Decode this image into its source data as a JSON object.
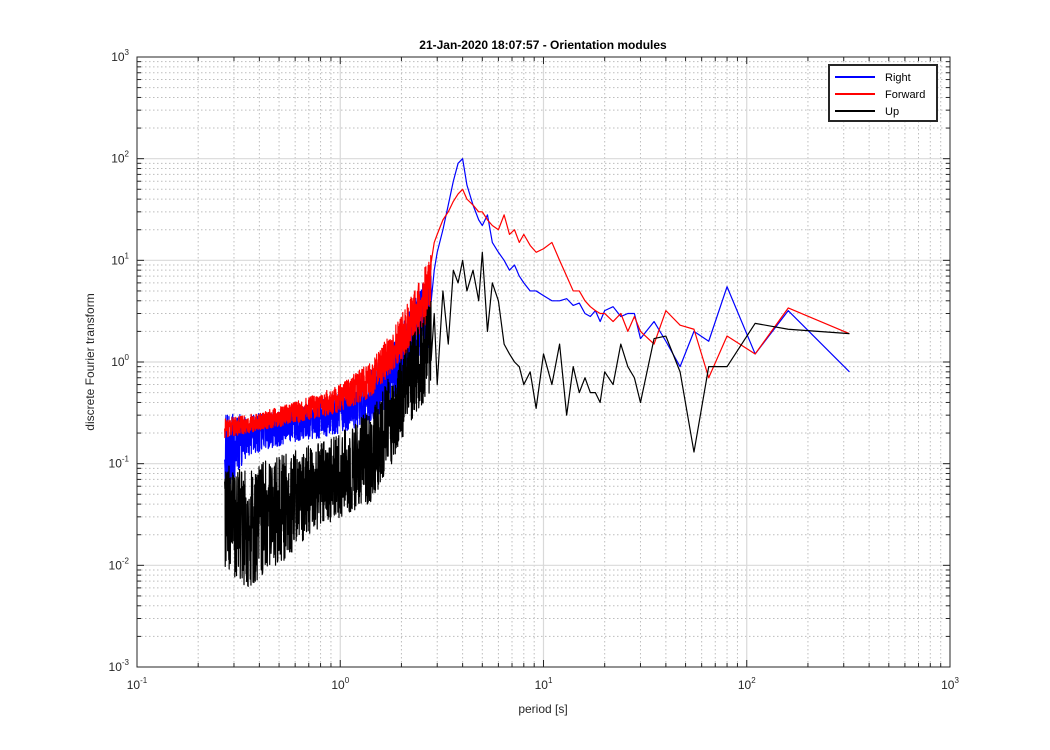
{
  "chart_data": {
    "type": "line",
    "title": "21-Jan-2020 18:07:57 - Orientation modules",
    "xlabel": "period [s]",
    "ylabel": "discrete Fourier transform",
    "xscale": "log",
    "yscale": "log",
    "xlim": [
      0.1,
      1000
    ],
    "ylim": [
      0.001,
      1000
    ],
    "x_ticks": [
      {
        "base": "10",
        "exp": "-1"
      },
      {
        "base": "10",
        "exp": "0"
      },
      {
        "base": "10",
        "exp": "1"
      },
      {
        "base": "10",
        "exp": "2"
      },
      {
        "base": "10",
        "exp": "3"
      }
    ],
    "y_ticks": [
      {
        "base": "10",
        "exp": "-3"
      },
      {
        "base": "10",
        "exp": "-2"
      },
      {
        "base": "10",
        "exp": "-1"
      },
      {
        "base": "10",
        "exp": "0"
      },
      {
        "base": "10",
        "exp": "1"
      },
      {
        "base": "10",
        "exp": "2"
      },
      {
        "base": "10",
        "exp": "3"
      }
    ],
    "grid": true,
    "minor_grid": true,
    "legend_position": "top-right",
    "series": [
      {
        "name": "Right",
        "color": "#0000ff",
        "envelope": [
          {
            "x": 0.27,
            "low": 0.05,
            "high": 0.32
          },
          {
            "x": 0.35,
            "low": 0.12,
            "high": 0.3
          },
          {
            "x": 0.5,
            "low": 0.15,
            "high": 0.33
          },
          {
            "x": 0.7,
            "low": 0.17,
            "high": 0.4
          },
          {
            "x": 1.0,
            "low": 0.2,
            "high": 0.5
          },
          {
            "x": 1.4,
            "low": 0.25,
            "high": 0.8
          },
          {
            "x": 1.8,
            "low": 0.4,
            "high": 1.5
          },
          {
            "x": 2.3,
            "low": 0.8,
            "high": 4.0
          },
          {
            "x": 2.8,
            "low": 1.5,
            "high": 10.0
          }
        ],
        "x": [
          2.9,
          3.0,
          3.2,
          3.4,
          3.6,
          3.8,
          4.0,
          4.2,
          4.5,
          4.8,
          5.0,
          5.3,
          5.6,
          6.0,
          6.4,
          6.8,
          7.2,
          7.6,
          8.0,
          8.6,
          9.2,
          10,
          11,
          12,
          13,
          14,
          15,
          16,
          17,
          18,
          19,
          20,
          22,
          24,
          26,
          28,
          30,
          35,
          40,
          47,
          55,
          65,
          80,
          110,
          160,
          320
        ],
        "y": [
          8,
          12,
          20,
          35,
          60,
          90,
          100,
          55,
          35,
          25,
          22,
          28,
          15,
          12,
          10,
          8,
          9,
          7,
          6,
          5,
          5,
          4.5,
          4,
          4,
          4.2,
          3.6,
          3.8,
          3,
          2.8,
          3.2,
          2.5,
          3.2,
          3.5,
          2.8,
          3.0,
          3.0,
          1.7,
          2.5,
          1.6,
          0.9,
          2.0,
          1.6,
          5.5,
          1.2,
          3.2,
          0.8
        ]
      },
      {
        "name": "Forward",
        "color": "#ff0000",
        "envelope": [
          {
            "x": 0.27,
            "low": 0.18,
            "high": 0.28
          },
          {
            "x": 0.35,
            "low": 0.2,
            "high": 0.3
          },
          {
            "x": 0.5,
            "low": 0.23,
            "high": 0.36
          },
          {
            "x": 0.7,
            "low": 0.27,
            "high": 0.45
          },
          {
            "x": 1.0,
            "low": 0.32,
            "high": 0.6
          },
          {
            "x": 1.4,
            "low": 0.45,
            "high": 1.0
          },
          {
            "x": 1.8,
            "low": 0.8,
            "high": 2.0
          },
          {
            "x": 2.3,
            "low": 1.5,
            "high": 5.0
          },
          {
            "x": 2.8,
            "low": 3.0,
            "high": 12.0
          }
        ],
        "x": [
          2.9,
          3.0,
          3.2,
          3.4,
          3.6,
          3.8,
          4.0,
          4.2,
          4.5,
          4.8,
          5.0,
          5.3,
          5.6,
          6.0,
          6.4,
          6.8,
          7.2,
          7.6,
          8.0,
          8.6,
          9.2,
          10,
          11,
          12,
          13,
          14,
          15,
          16,
          17,
          18,
          19,
          20,
          22,
          24,
          26,
          28,
          30,
          35,
          40,
          47,
          55,
          65,
          80,
          110,
          160,
          320
        ],
        "y": [
          15,
          18,
          25,
          30,
          38,
          45,
          50,
          40,
          35,
          30,
          30,
          25,
          22,
          20,
          28,
          18,
          20,
          15,
          18,
          14,
          12,
          13,
          15,
          10,
          7,
          5,
          5,
          4,
          3.5,
          3.2,
          3.0,
          3.0,
          2.5,
          3.0,
          2.0,
          2.8,
          2.0,
          1.5,
          3.2,
          2.3,
          2.1,
          0.7,
          1.8,
          1.2,
          3.4,
          1.9
        ]
      },
      {
        "name": "Up",
        "color": "#000000",
        "envelope": [
          {
            "x": 0.27,
            "low": 0.009,
            "high": 0.1
          },
          {
            "x": 0.35,
            "low": 0.006,
            "high": 0.09
          },
          {
            "x": 0.5,
            "low": 0.01,
            "high": 0.12
          },
          {
            "x": 0.7,
            "low": 0.02,
            "high": 0.15
          },
          {
            "x": 1.0,
            "low": 0.03,
            "high": 0.2
          },
          {
            "x": 1.4,
            "low": 0.04,
            "high": 0.35
          },
          {
            "x": 1.8,
            "low": 0.1,
            "high": 0.8
          },
          {
            "x": 2.3,
            "low": 0.3,
            "high": 2.0
          },
          {
            "x": 2.8,
            "low": 0.5,
            "high": 4.0
          }
        ],
        "x": [
          2.9,
          3.0,
          3.2,
          3.4,
          3.6,
          3.8,
          4.0,
          4.2,
          4.5,
          4.8,
          5.0,
          5.3,
          5.6,
          6.0,
          6.4,
          6.8,
          7.2,
          7.6,
          8.0,
          8.6,
          9.2,
          10,
          11,
          12,
          13,
          14,
          15,
          16,
          17,
          18,
          19,
          20,
          22,
          24,
          26,
          28,
          30,
          35,
          40,
          47,
          55,
          65,
          80,
          110,
          160,
          320
        ],
        "y": [
          3,
          0.6,
          5,
          1.5,
          8,
          6,
          10,
          5,
          8,
          4,
          12,
          2,
          6,
          4,
          1.5,
          1.2,
          1.0,
          0.9,
          0.6,
          0.8,
          0.35,
          1.2,
          0.6,
          1.5,
          0.3,
          0.9,
          0.5,
          0.7,
          0.5,
          0.5,
          0.4,
          0.8,
          0.6,
          1.5,
          0.9,
          0.7,
          0.4,
          1.7,
          1.8,
          0.8,
          0.13,
          0.9,
          0.9,
          2.4,
          2.1,
          1.9
        ]
      }
    ]
  }
}
